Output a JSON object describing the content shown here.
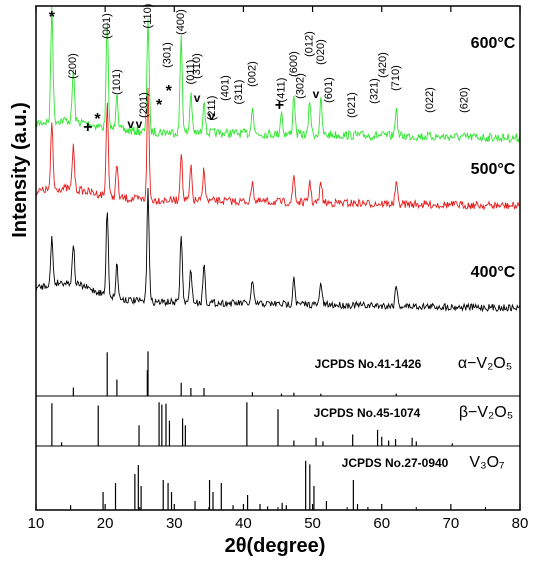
{
  "chart_data": {
    "type": "line",
    "xlabel": "2θ(degree)",
    "ylabel": "Intensity (a.u.)",
    "xlim": [
      10,
      80
    ],
    "x_ticks": [
      "10",
      "20",
      "30",
      "40",
      "50",
      "60",
      "70",
      "80"
    ],
    "grid": false,
    "series": [
      {
        "name": "600°C",
        "color": "#2ee62e",
        "peaks": [
          [
            12.3,
            1.0
          ],
          [
            15.4,
            0.45
          ],
          [
            20.3,
            0.9
          ],
          [
            21.7,
            0.35
          ],
          [
            26.2,
            1.0
          ],
          [
            31.0,
            0.85
          ],
          [
            32.4,
            0.35
          ],
          [
            34.3,
            0.3
          ],
          [
            41.3,
            0.25
          ],
          [
            45.5,
            0.2
          ],
          [
            47.3,
            0.35
          ],
          [
            49.6,
            0.3
          ],
          [
            51.2,
            0.3
          ],
          [
            62.1,
            0.25
          ]
        ]
      },
      {
        "name": "500°C",
        "color": "#e61e1e",
        "peaks": [
          [
            12.3,
            0.6
          ],
          [
            15.4,
            0.4
          ],
          [
            20.3,
            0.85
          ],
          [
            21.7,
            0.3
          ],
          [
            26.2,
            1.0
          ],
          [
            31.0,
            0.45
          ],
          [
            32.4,
            0.3
          ],
          [
            34.3,
            0.3
          ],
          [
            41.3,
            0.2
          ],
          [
            47.3,
            0.25
          ],
          [
            49.6,
            0.2
          ],
          [
            51.2,
            0.2
          ],
          [
            62.1,
            0.2
          ]
        ]
      },
      {
        "name": "400°C",
        "color": "#000000",
        "peaks": [
          [
            12.3,
            0.4
          ],
          [
            15.4,
            0.35
          ],
          [
            20.3,
            0.75
          ],
          [
            21.7,
            0.3
          ],
          [
            26.2,
            1.0
          ],
          [
            31.0,
            0.6
          ],
          [
            32.4,
            0.3
          ],
          [
            34.3,
            0.35
          ],
          [
            41.3,
            0.2
          ],
          [
            47.3,
            0.25
          ],
          [
            51.2,
            0.2
          ],
          [
            62.1,
            0.2
          ]
        ]
      }
    ],
    "peak_labels": [
      {
        "text": "(200)",
        "x": 15.4
      },
      {
        "text": "(001)",
        "x": 20.3
      },
      {
        "text": "(101)",
        "x": 21.7
      },
      {
        "text": "(201)",
        "x": 25.6
      },
      {
        "text": "(110)",
        "x": 26.2
      },
      {
        "text": "(301)",
        "x": 29.0
      },
      {
        "text": "(400)",
        "x": 31.0
      },
      {
        "text": "(011)",
        "x": 32.4
      },
      {
        "text": "(310)",
        "x": 33.3
      },
      {
        "text": "(211)",
        "x": 35.5
      },
      {
        "text": "(401)",
        "x": 37.4
      },
      {
        "text": "(311)",
        "x": 39.4
      },
      {
        "text": "(002)",
        "x": 41.3
      },
      {
        "text": "(411)",
        "x": 45.5
      },
      {
        "text": "(600)",
        "x": 47.3
      },
      {
        "text": "(302)",
        "x": 48.3
      },
      {
        "text": "(012)",
        "x": 49.6
      },
      {
        "text": "(020)",
        "x": 51.2
      },
      {
        "text": "(601)",
        "x": 52.4
      },
      {
        "text": "(021)",
        "x": 55.7
      },
      {
        "text": "(321)",
        "x": 59.0
      },
      {
        "text": "(420)",
        "x": 60.2
      },
      {
        "text": "(710)",
        "x": 62.1
      },
      {
        "text": "(022)",
        "x": 67.0
      },
      {
        "text": "(620)",
        "x": 72.0
      }
    ],
    "markers": [
      {
        "symbol": "*",
        "x": 12.3
      },
      {
        "symbol": "*",
        "x": 18.9
      },
      {
        "symbol": "+",
        "x": 17.5
      },
      {
        "symbol": "v",
        "x": 23.7
      },
      {
        "symbol": "v",
        "x": 24.9
      },
      {
        "symbol": "*",
        "x": 27.8
      },
      {
        "symbol": "*",
        "x": 29.2
      },
      {
        "symbol": "v",
        "x": 33.3
      },
      {
        "symbol": "v",
        "x": 35.4
      },
      {
        "symbol": "+",
        "x": 45.2
      },
      {
        "symbol": "v",
        "x": 50.5
      }
    ],
    "reference_panels": [
      {
        "label": "JCPDS No.41-1426",
        "phase": "α−V₂O₅",
        "lines": [
          [
            15.4,
            0.18
          ],
          [
            20.3,
            0.93
          ],
          [
            21.7,
            0.35
          ],
          [
            26.1,
            0.55
          ],
          [
            26.2,
            0.95
          ],
          [
            31.0,
            0.28
          ],
          [
            32.4,
            0.17
          ],
          [
            34.3,
            0.17
          ],
          [
            41.3,
            0.08
          ],
          [
            45.5,
            0.05
          ],
          [
            47.3,
            0.07
          ],
          [
            51.2,
            0.05
          ],
          [
            62.1,
            0.05
          ]
        ]
      },
      {
        "label": "JCPDS No.45-1074",
        "phase": "β−V₂O₅",
        "lines": [
          [
            12.3,
            0.93
          ],
          [
            13.7,
            0.08
          ],
          [
            19.0,
            0.88
          ],
          [
            24.9,
            0.45
          ],
          [
            27.8,
            0.95
          ],
          [
            28.2,
            0.9
          ],
          [
            28.8,
            0.92
          ],
          [
            29.3,
            0.55
          ],
          [
            31.2,
            0.6
          ],
          [
            31.6,
            0.45
          ],
          [
            40.5,
            0.95
          ],
          [
            45.0,
            0.8
          ],
          [
            47.3,
            0.12
          ],
          [
            50.5,
            0.18
          ],
          [
            51.5,
            0.1
          ],
          [
            55.8,
            0.25
          ],
          [
            59.4,
            0.35
          ],
          [
            60.0,
            0.2
          ],
          [
            61.0,
            0.12
          ],
          [
            62.0,
            0.15
          ],
          [
            64.4,
            0.18
          ],
          [
            65.0,
            0.1
          ],
          [
            70.2,
            0.06
          ]
        ]
      },
      {
        "label": "JCPDS No.27-0940",
        "phase": "V₃O₇",
        "lines": [
          [
            15.0,
            0.08
          ],
          [
            19.7,
            0.3
          ],
          [
            21.5,
            0.45
          ],
          [
            24.3,
            0.6
          ],
          [
            24.8,
            0.75
          ],
          [
            25.2,
            0.4
          ],
          [
            28.4,
            0.5
          ],
          [
            29.1,
            0.45
          ],
          [
            29.6,
            0.3
          ],
          [
            33.0,
            0.15
          ],
          [
            35.1,
            0.5
          ],
          [
            35.6,
            0.3
          ],
          [
            36.8,
            0.45
          ],
          [
            38.5,
            0.08
          ],
          [
            40.6,
            0.25
          ],
          [
            42.4,
            0.1
          ],
          [
            43.5,
            0.06
          ],
          [
            45.6,
            0.12
          ],
          [
            46.2,
            0.08
          ],
          [
            49.0,
            0.82
          ],
          [
            49.6,
            0.76
          ],
          [
            50.2,
            0.4
          ],
          [
            52.0,
            0.15
          ],
          [
            55.9,
            0.5
          ],
          [
            56.5,
            0.1
          ],
          [
            58.0,
            0.05
          ]
        ]
      }
    ]
  }
}
